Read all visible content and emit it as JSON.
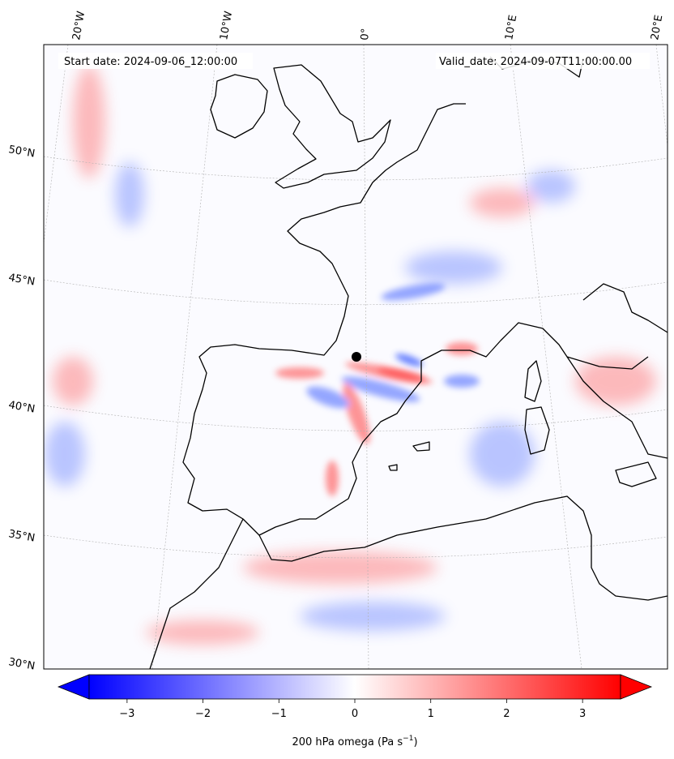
{
  "header": {
    "start_date": "Start date: 2024-09-06_12:00:00",
    "valid_date": "Valid_date: 2024-09-07T11:00:00.00"
  },
  "map": {
    "longitude_labels": [
      "20°W",
      "10°W",
      "0°",
      "10°E",
      "20°E"
    ],
    "latitude_labels": [
      "50°N",
      "45°N",
      "40°N",
      "35°N",
      "30°N"
    ]
  },
  "colorbar": {
    "label_text": "200 hPa omega (Pa s",
    "label_sup": "−1",
    "label_close": ")",
    "min": -3.5,
    "max": 3.5,
    "ticks": [
      "−3",
      "−2",
      "−1",
      "0",
      "1",
      "2",
      "3"
    ],
    "colors": {
      "low": "#0000ff",
      "mid": "#ffffff",
      "high": "#ff0000"
    }
  }
}
